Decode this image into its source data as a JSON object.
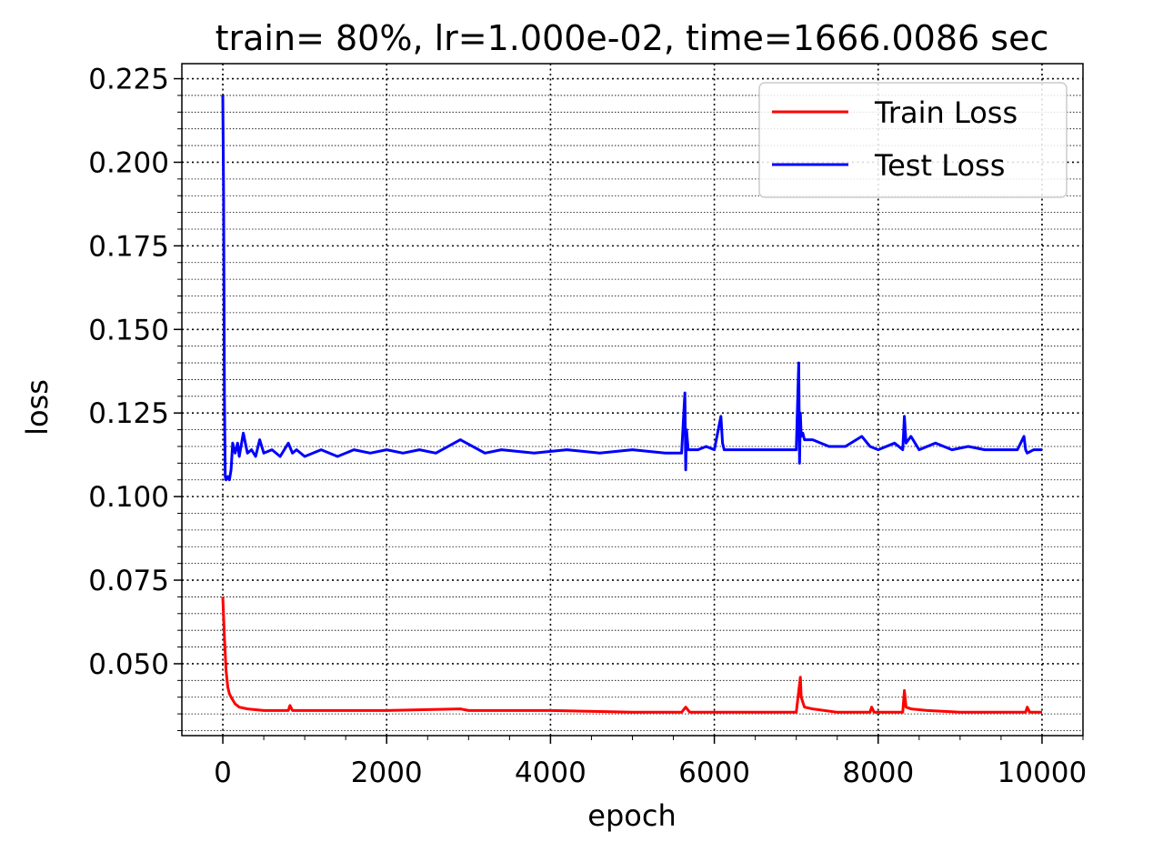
{
  "chart_data": {
    "type": "line",
    "title": "train= 80%, lr=1.000e-02, time=1666.0086 sec",
    "xlabel": "epoch",
    "ylabel": "loss",
    "xlim": [
      -500,
      10500
    ],
    "ylim": [
      0.0285,
      0.2295
    ],
    "xticks": [
      0,
      2000,
      4000,
      6000,
      8000,
      10000
    ],
    "xtick_labels": [
      "0",
      "2000",
      "4000",
      "6000",
      "8000",
      "10000"
    ],
    "yticks": [
      0.05,
      0.075,
      0.1,
      0.125,
      0.15,
      0.175,
      0.2,
      0.225
    ],
    "ytick_labels": [
      "0.050",
      "0.075",
      "0.100",
      "0.125",
      "0.150",
      "0.175",
      "0.200",
      "0.225"
    ],
    "grid": "major and minor, dotted",
    "legend_position": "upper-right",
    "series": [
      {
        "name": "Train Loss",
        "color": "#ff0000",
        "x": [
          0,
          20,
          40,
          60,
          80,
          100,
          150,
          200,
          300,
          500,
          800,
          820,
          850,
          1000,
          2000,
          2900,
          3000,
          4000,
          5000,
          5600,
          5650,
          5700,
          6000,
          7000,
          7050,
          7060,
          7100,
          7200,
          7500,
          7900,
          7920,
          7950,
          8300,
          8320,
          8340,
          8400,
          8600,
          9000,
          9500,
          9800,
          9820,
          9850,
          10000
        ],
        "y": [
          0.07,
          0.058,
          0.048,
          0.043,
          0.041,
          0.04,
          0.038,
          0.037,
          0.0365,
          0.036,
          0.036,
          0.0375,
          0.036,
          0.036,
          0.036,
          0.0365,
          0.036,
          0.036,
          0.0355,
          0.0355,
          0.037,
          0.0355,
          0.0355,
          0.0355,
          0.046,
          0.04,
          0.037,
          0.0365,
          0.0355,
          0.0355,
          0.037,
          0.0355,
          0.0355,
          0.042,
          0.037,
          0.0365,
          0.036,
          0.0355,
          0.0355,
          0.0355,
          0.037,
          0.0355,
          0.0355
        ]
      },
      {
        "name": "Test Loss",
        "color": "#0000ff",
        "x": [
          0,
          10,
          20,
          30,
          40,
          60,
          80,
          100,
          120,
          150,
          180,
          200,
          250,
          300,
          350,
          400,
          450,
          500,
          600,
          700,
          800,
          850,
          900,
          1000,
          1200,
          1400,
          1600,
          1800,
          2000,
          2200,
          2400,
          2600,
          2900,
          3200,
          3400,
          3800,
          4200,
          4600,
          5000,
          5400,
          5600,
          5640,
          5650,
          5660,
          5680,
          5700,
          5750,
          5800,
          5900,
          6000,
          6080,
          6100,
          6120,
          6150,
          6300,
          6600,
          6900,
          7000,
          7030,
          7040,
          7050,
          7060,
          7080,
          7100,
          7200,
          7400,
          7600,
          7800,
          7900,
          8000,
          8200,
          8300,
          8320,
          8340,
          8400,
          8500,
          8700,
          8900,
          9100,
          9300,
          9500,
          9700,
          9780,
          9800,
          9820,
          9900,
          10000
        ],
        "y": [
          0.22,
          0.19,
          0.13,
          0.106,
          0.105,
          0.106,
          0.105,
          0.108,
          0.116,
          0.113,
          0.116,
          0.112,
          0.119,
          0.113,
          0.114,
          0.112,
          0.117,
          0.113,
          0.114,
          0.112,
          0.116,
          0.113,
          0.114,
          0.112,
          0.114,
          0.112,
          0.114,
          0.113,
          0.114,
          0.113,
          0.114,
          0.113,
          0.117,
          0.113,
          0.114,
          0.113,
          0.114,
          0.113,
          0.114,
          0.113,
          0.113,
          0.131,
          0.108,
          0.12,
          0.114,
          0.114,
          0.114,
          0.114,
          0.115,
          0.114,
          0.124,
          0.116,
          0.114,
          0.114,
          0.114,
          0.114,
          0.114,
          0.114,
          0.14,
          0.11,
          0.125,
          0.118,
          0.119,
          0.117,
          0.117,
          0.115,
          0.115,
          0.118,
          0.115,
          0.114,
          0.116,
          0.114,
          0.124,
          0.116,
          0.118,
          0.114,
          0.116,
          0.114,
          0.115,
          0.114,
          0.114,
          0.114,
          0.118,
          0.114,
          0.113,
          0.114,
          0.114
        ]
      }
    ]
  }
}
